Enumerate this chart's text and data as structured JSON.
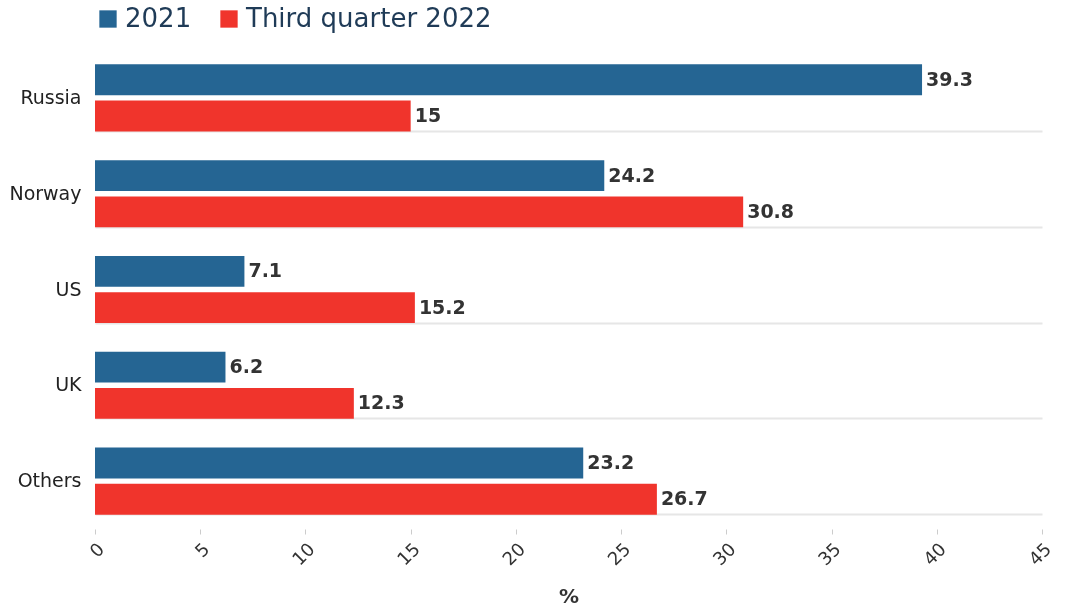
{
  "chart_data": {
    "type": "bar",
    "orientation": "horizontal",
    "xlabel": "%",
    "categories": [
      "Russia",
      "Norway",
      "US",
      "UK",
      "Others"
    ],
    "series": [
      {
        "name": "2021",
        "color": "#256593",
        "values": [
          39.3,
          24.2,
          7.1,
          6.2,
          23.2
        ]
      },
      {
        "name": "Third quarter 2022",
        "color": "#f0342c",
        "values": [
          15,
          30.8,
          15.2,
          12.3,
          26.7
        ]
      }
    ],
    "xlim": [
      0,
      45
    ],
    "xticks": [
      0,
      5,
      10,
      15,
      20,
      25,
      30,
      35,
      40,
      45
    ],
    "data_labels": true,
    "grid": "y",
    "legend": "top"
  }
}
